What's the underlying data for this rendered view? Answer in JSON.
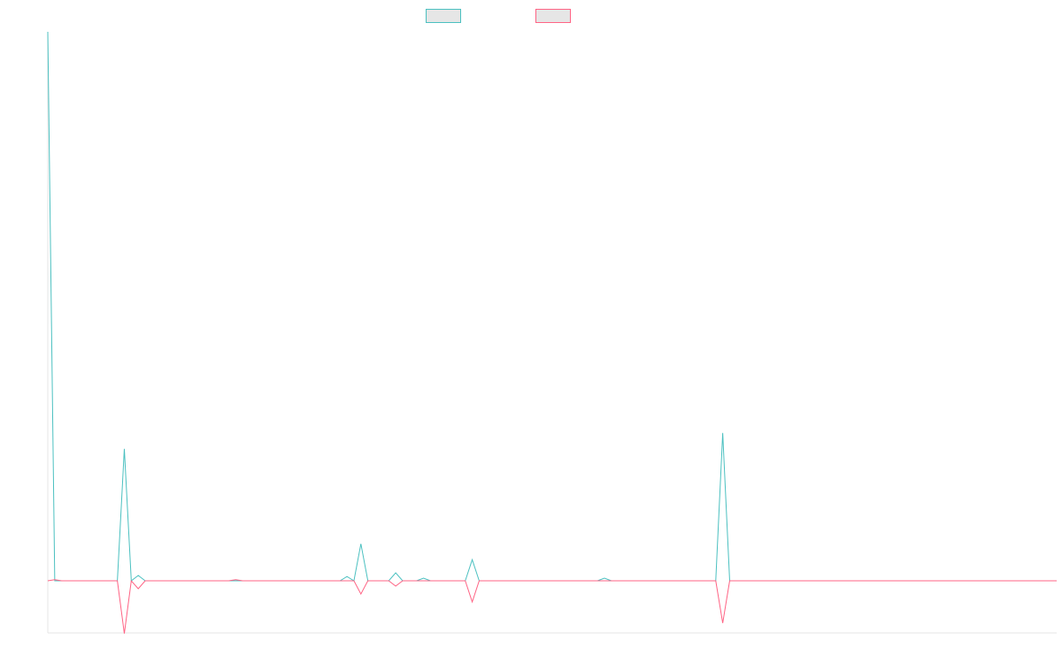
{
  "colors": {
    "series_a": "#4bc0c0",
    "series_b": "#ff6384",
    "axis": "#e4e4e4",
    "swatch_fill": "#e6e6e6"
  },
  "chart_data": {
    "type": "line",
    "title": "",
    "xlabel": "",
    "ylabel": "",
    "grid": false,
    "legend": "top-center",
    "x_count": 145,
    "ylim": [
      -1,
      10.4
    ],
    "series": [
      {
        "color_key": "series_a",
        "points": [
          [
            0,
            10.4
          ],
          [
            1,
            0
          ],
          [
            10,
            0
          ],
          [
            11,
            2.5
          ],
          [
            12,
            0
          ],
          [
            13,
            0.1
          ],
          [
            14,
            0
          ],
          [
            42,
            0
          ],
          [
            43,
            0.08
          ],
          [
            44,
            0
          ],
          [
            45,
            0.7
          ],
          [
            46,
            0
          ],
          [
            49,
            0
          ],
          [
            50,
            0.15
          ],
          [
            51,
            0
          ],
          [
            53,
            0
          ],
          [
            54,
            0.05
          ],
          [
            55,
            0
          ],
          [
            60,
            0
          ],
          [
            61,
            0.4
          ],
          [
            62,
            0
          ],
          [
            79,
            0
          ],
          [
            80,
            0.05
          ],
          [
            81,
            0
          ],
          [
            96,
            0
          ],
          [
            97,
            2.8
          ],
          [
            98,
            0
          ],
          [
            145,
            0
          ]
        ]
      },
      {
        "color_key": "series_b",
        "points": [
          [
            0,
            0
          ],
          [
            1,
            0.02
          ],
          [
            2,
            0
          ],
          [
            10,
            0
          ],
          [
            11,
            -1.0
          ],
          [
            12,
            0
          ],
          [
            13,
            -0.15
          ],
          [
            14,
            0
          ],
          [
            26,
            0
          ],
          [
            27,
            0.02
          ],
          [
            28,
            0
          ],
          [
            44,
            0
          ],
          [
            45,
            -0.25
          ],
          [
            46,
            0
          ],
          [
            49,
            0
          ],
          [
            50,
            -0.1
          ],
          [
            51,
            0
          ],
          [
            60,
            0
          ],
          [
            61,
            -0.4
          ],
          [
            62,
            0
          ],
          [
            96,
            0
          ],
          [
            97,
            -0.8
          ],
          [
            98,
            0
          ],
          [
            145,
            0
          ]
        ]
      }
    ]
  }
}
